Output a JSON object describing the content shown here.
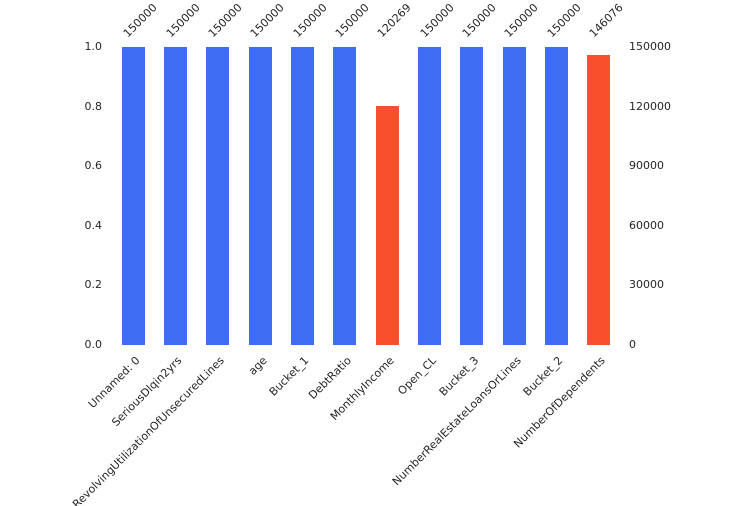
{
  "chart_data": {
    "type": "bar",
    "title": "",
    "xlabel": "",
    "ylabel": "",
    "categories": [
      "Unnamed: 0",
      "SeriousDlqin2yrs",
      "RevolvingUtilizationOfUnsecuredLines",
      "age",
      "Bucket_1",
      "DebtRatio",
      "MonthlyIncome",
      "Open_CL",
      "Bucket_3",
      "NumberRealEstateLoansOrLines",
      "Bucket_2",
      "NumberOfDependents"
    ],
    "values": [
      150000,
      150000,
      150000,
      150000,
      150000,
      150000,
      120269,
      150000,
      150000,
      150000,
      150000,
      146076
    ],
    "bar_labels": [
      "150000",
      "150000",
      "150000",
      "150000",
      "150000",
      "150000",
      "120269",
      "150000",
      "150000",
      "150000",
      "150000",
      "146076"
    ],
    "bar_colors": [
      "#3e6cf2",
      "#3e6cf2",
      "#3e6cf2",
      "#3e6cf2",
      "#3e6cf2",
      "#3e6cf2",
      "#f8502c",
      "#3e6cf2",
      "#3e6cf2",
      "#3e6cf2",
      "#3e6cf2",
      "#f8502c"
    ],
    "total_rows": 150000,
    "left_axis": {
      "ticks": [
        "0.0",
        "0.2",
        "0.4",
        "0.6",
        "0.8",
        "1.0"
      ],
      "range": [
        0,
        1.0
      ]
    },
    "right_axis": {
      "ticks": [
        "0",
        "30000",
        "60000",
        "90000",
        "120000",
        "150000"
      ],
      "range": [
        0,
        150000
      ]
    },
    "grid": false,
    "legend": null
  }
}
